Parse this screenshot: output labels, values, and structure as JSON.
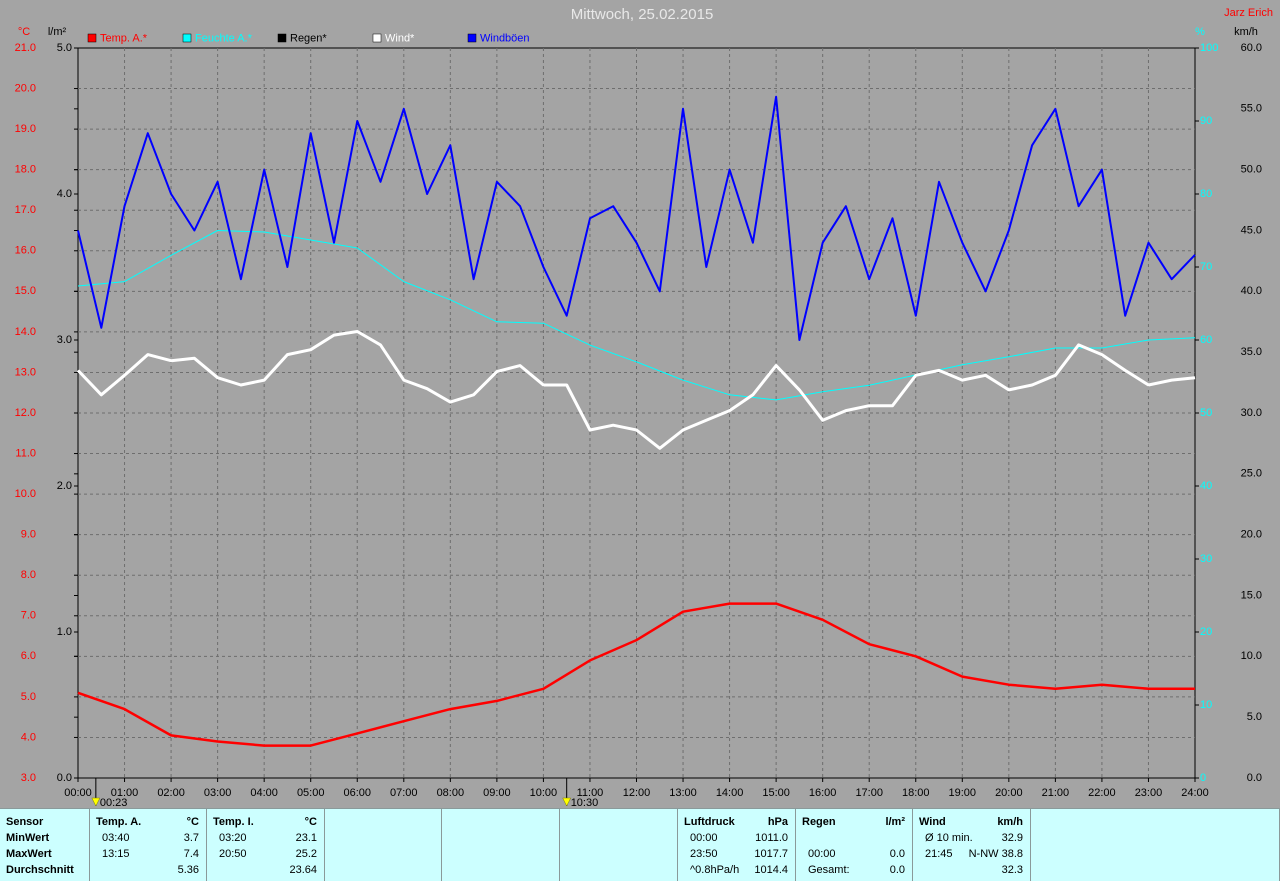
{
  "chart_data": {
    "type": "line",
    "title": "Mittwoch, 25.02.2015",
    "author": "Jarz Erich",
    "y_label": "°C",
    "y2_label": "l/m²",
    "y3_label": "%",
    "y4_label": "km/h",
    "grid": true,
    "xlim": [
      0,
      24
    ],
    "xticks": [
      {
        "value": 0,
        "label": "00:00"
      },
      {
        "value": 1,
        "label": "01:00"
      },
      {
        "value": 2,
        "label": "02:00"
      },
      {
        "value": 3,
        "label": "03:00"
      },
      {
        "value": 4,
        "label": "04:00"
      },
      {
        "value": 5,
        "label": "05:00"
      },
      {
        "value": 6,
        "label": "06:00"
      },
      {
        "value": 7,
        "label": "07:00"
      },
      {
        "value": 8,
        "label": "08:00"
      },
      {
        "value": 9,
        "label": "09:00"
      },
      {
        "value": 10,
        "label": "10:00"
      },
      {
        "value": 11,
        "label": "11:00"
      },
      {
        "value": 12,
        "label": "12:00"
      },
      {
        "value": 13,
        "label": "13:00"
      },
      {
        "value": 14,
        "label": "14:00"
      },
      {
        "value": 15,
        "label": "15:00"
      },
      {
        "value": 16,
        "label": "16:00"
      },
      {
        "value": 17,
        "label": "17:00"
      },
      {
        "value": 18,
        "label": "18:00"
      },
      {
        "value": 19,
        "label": "19:00"
      },
      {
        "value": 20,
        "label": "20:00"
      },
      {
        "value": 21,
        "label": "21:00"
      },
      {
        "value": 22,
        "label": "22:00"
      },
      {
        "value": 23,
        "label": "23:00"
      },
      {
        "value": 24,
        "label": "24:00"
      }
    ],
    "ylim": [
      3,
      21
    ],
    "yticks": [
      {
        "value": 3,
        "label": "3.0"
      },
      {
        "value": 4,
        "label": "4.0"
      },
      {
        "value": 5,
        "label": "5.0"
      },
      {
        "value": 6,
        "label": "6.0"
      },
      {
        "value": 7,
        "label": "7.0"
      },
      {
        "value": 8,
        "label": "8.0"
      },
      {
        "value": 9,
        "label": "9.0"
      },
      {
        "value": 10,
        "label": "10.0"
      },
      {
        "value": 11,
        "label": "11.0"
      },
      {
        "value": 12,
        "label": "12.0"
      },
      {
        "value": 13,
        "label": "13.0"
      },
      {
        "value": 14,
        "label": "14.0"
      },
      {
        "value": 15,
        "label": "15.0"
      },
      {
        "value": 16,
        "label": "16.0"
      },
      {
        "value": 17,
        "label": "17.0"
      },
      {
        "value": 18,
        "label": "18.0"
      },
      {
        "value": 19,
        "label": "19.0"
      },
      {
        "value": 20,
        "label": "20.0"
      },
      {
        "value": 21,
        "label": "21.0"
      }
    ],
    "y2lim": [
      0,
      5
    ],
    "y2ticks": [
      {
        "value": 0,
        "label": "0.0"
      },
      {
        "value": 1,
        "label": "1.0"
      },
      {
        "value": 2,
        "label": "2.0"
      },
      {
        "value": 3,
        "label": "3.0"
      },
      {
        "value": 4,
        "label": "4.0"
      },
      {
        "value": 5,
        "label": "5.0"
      }
    ],
    "y3lim": [
      0,
      100
    ],
    "y3ticks": [
      0,
      10,
      20,
      30,
      40,
      50,
      60,
      70,
      80,
      90,
      100
    ],
    "y4lim": [
      0,
      60
    ],
    "y4ticks": [
      {
        "value": 0,
        "label": "0.0"
      },
      {
        "value": 5,
        "label": "5.0"
      },
      {
        "value": 10,
        "label": "10.0"
      },
      {
        "value": 15,
        "label": "15.0"
      },
      {
        "value": 20,
        "label": "20.0"
      },
      {
        "value": 25,
        "label": "25.0"
      },
      {
        "value": 30,
        "label": "30.0"
      },
      {
        "value": 35,
        "label": "35.0"
      },
      {
        "value": 40,
        "label": "40.0"
      },
      {
        "value": 45,
        "label": "45.0"
      },
      {
        "value": 50,
        "label": "50.0"
      },
      {
        "value": 55,
        "label": "55.0"
      },
      {
        "value": 60,
        "label": "60.0"
      }
    ],
    "annotations": [
      {
        "x": 0.3833,
        "label": "00:23"
      },
      {
        "x": 10.5,
        "label": "10:30"
      }
    ],
    "series": [
      {
        "name": "Temp. A.*",
        "color": "#ff0000",
        "axis": "y",
        "width": 2.5,
        "x": [
          0,
          1,
          2,
          3,
          4,
          5,
          6,
          7,
          8,
          9,
          10,
          11,
          12,
          13,
          14,
          15,
          16,
          17,
          18,
          19,
          20,
          21,
          22,
          23,
          24
        ],
        "values": [
          5.1,
          4.7,
          4.05,
          3.9,
          3.8,
          3.8,
          4.1,
          4.4,
          4.7,
          4.9,
          5.2,
          5.9,
          6.4,
          7.1,
          7.3,
          7.3,
          6.9,
          6.3,
          6.0,
          5.5,
          5.3,
          5.2,
          5.3,
          5.2,
          5.2
        ]
      },
      {
        "name": "Feuchte A.*",
        "color": "#00ffff",
        "axis": "y3",
        "width": 1,
        "x": [
          0,
          1,
          2,
          3,
          4,
          5,
          6,
          7,
          8,
          9,
          10,
          11,
          12,
          13,
          14,
          15,
          16,
          17,
          18,
          19,
          20,
          21,
          22,
          23,
          24
        ],
        "values": [
          67.4,
          68,
          71.6,
          75,
          74.8,
          73.7,
          72.6,
          68,
          65.5,
          62.5,
          62.3,
          59.3,
          57,
          54.5,
          52.5,
          51.8,
          52.9,
          53.8,
          55.2,
          56.6,
          57.7,
          58.9,
          58.9,
          60,
          60.3
        ]
      },
      {
        "name": "Regen*",
        "color": "#000000",
        "axis": "y2",
        "width": 1,
        "x": [
          0,
          24
        ],
        "values": [
          0,
          0
        ]
      },
      {
        "name": "Wind*",
        "color": "#ffffff",
        "axis": "y4",
        "width": 3,
        "x": [
          0,
          0.5,
          1,
          1.5,
          2,
          2.5,
          3,
          3.5,
          4,
          4.5,
          5,
          5.5,
          6,
          6.5,
          7,
          7.5,
          8,
          8.5,
          9,
          9.5,
          10,
          10.5,
          11,
          11.5,
          12,
          12.5,
          13,
          13.5,
          14,
          14.5,
          15,
          15.5,
          16,
          16.5,
          17,
          17.5,
          18,
          18.5,
          19,
          19.5,
          20,
          20.5,
          21,
          21.5,
          22,
          22.5,
          23,
          23.5,
          24
        ],
        "values": [
          33.5,
          31.5,
          33.1,
          34.8,
          34.3,
          34.5,
          32.9,
          32.3,
          32.7,
          34.8,
          35.2,
          36.4,
          36.7,
          35.6,
          32.7,
          32,
          30.9,
          31.5,
          33.4,
          33.9,
          32.3,
          32.3,
          28.6,
          29,
          28.6,
          27.1,
          28.6,
          29.4,
          30.2,
          31.5,
          33.9,
          31.9,
          29.4,
          30.2,
          30.6,
          30.6,
          33.1,
          33.5,
          32.7,
          33.1,
          31.9,
          32.3,
          33.1,
          35.6,
          34.8,
          33.5,
          32.3,
          32.7,
          32.9
        ]
      },
      {
        "name": "Windböen",
        "color": "#0000ff",
        "axis": "y4",
        "width": 2,
        "x": [
          0,
          0.5,
          1,
          1.5,
          2,
          2.5,
          3,
          3.5,
          4,
          4.5,
          5,
          5.5,
          6,
          6.5,
          7,
          7.5,
          8,
          8.5,
          9,
          9.5,
          10,
          10.5,
          11,
          11.5,
          12,
          12.5,
          13,
          13.5,
          14,
          14.5,
          15,
          15.5,
          16,
          16.5,
          17,
          17.5,
          18,
          18.5,
          19,
          19.5,
          20,
          20.5,
          21,
          21.5,
          22,
          22.5,
          23,
          23.5,
          24
        ],
        "values": [
          45,
          37,
          47,
          53,
          48,
          45,
          49,
          41,
          50,
          42,
          53,
          44,
          54,
          49,
          55,
          48,
          52,
          41,
          49,
          47,
          42,
          38,
          46,
          47,
          44,
          40,
          55,
          42,
          50,
          44,
          56,
          36,
          44,
          47,
          41,
          46,
          38,
          49,
          44,
          40,
          45,
          52,
          55,
          47,
          50,
          38,
          44,
          41,
          43
        ]
      }
    ]
  },
  "table": {
    "panels": [
      {
        "header": {
          "left": "Sensor"
        },
        "min": {
          "left": "MinWert"
        },
        "max": {
          "left": "MaxWert"
        },
        "avg": {
          "left": "Durchschnitt"
        }
      },
      {
        "header": {
          "left": "Temp. A.",
          "right": "°C"
        },
        "min": {
          "left": "03:40",
          "right": "3.7"
        },
        "max": {
          "left": "13:15",
          "right": "7.4"
        },
        "avg": {
          "right": "5.36"
        }
      },
      {
        "header": {
          "left": "Temp. I.",
          "right": "°C"
        },
        "min": {
          "left": "03:20",
          "right": "23.1"
        },
        "max": {
          "left": "20:50",
          "right": "25.2"
        },
        "avg": {
          "right": "23.64"
        }
      },
      {
        "header": {
          "left": "Luftdruck",
          "right": "hPa"
        },
        "min": {
          "left": "00:00",
          "right": "1011.0"
        },
        "max": {
          "left": "23:50",
          "right": "1017.7"
        },
        "avg": {
          "left": "^0.8hPa/h",
          "right": "1014.4"
        }
      },
      {
        "header": {
          "left": "Regen",
          "right": "l/m²"
        },
        "max": {
          "left": "00:00",
          "right": "0.0"
        },
        "avg": {
          "left": "Gesamt:",
          "right": "0.0"
        }
      },
      {
        "header": {
          "left": "Wind",
          "right": "km/h"
        },
        "min": {
          "left": "Ø 10 min.",
          "right": "32.9"
        },
        "max": {
          "left": "21:45",
          "right": "N-NW 38.8"
        },
        "avg": {
          "right": "32.3"
        }
      }
    ]
  }
}
